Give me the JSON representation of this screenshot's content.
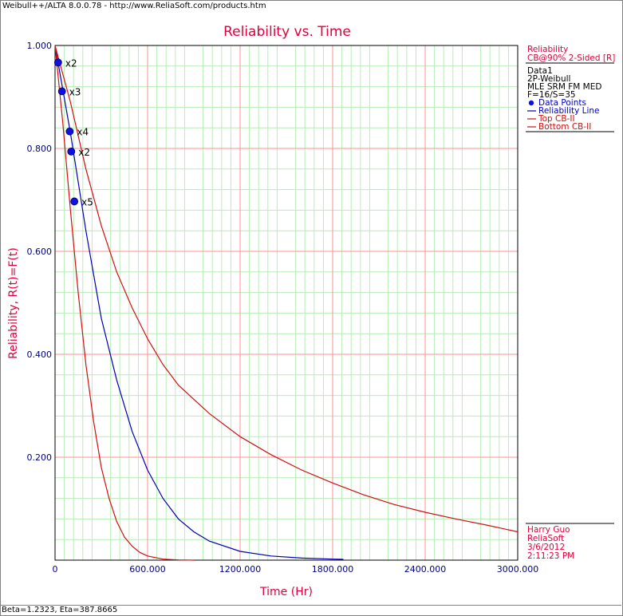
{
  "window": {
    "title": "Weibull++/ALTA 8.0.0.78 - http://www.ReliaSoft.com/products.htm"
  },
  "status_bar": {
    "text": "Beta=1.2323, Eta=387.8665"
  },
  "colors": {
    "title": "#e0003c",
    "axis_text": "#000080",
    "reliability_line": "#0000b0",
    "confidence_bounds": "#d01010",
    "major_grid": "#ff9090",
    "minor_grid": "#b8ecb8"
  },
  "legend": {
    "header": "Reliability",
    "subheader": "CB@90% 2-Sided [R]",
    "dataset": "Data1",
    "model": "2P-Weibull",
    "method": "MLE SRM FM MED",
    "counts": "F=16/S=35",
    "items": [
      {
        "label": "Data Points",
        "icon": "dot-icon"
      },
      {
        "label": "Reliability Line",
        "icon": "line-icon"
      },
      {
        "label": "Top CB-II",
        "icon": "line-icon"
      },
      {
        "label": "Bottom CB-II",
        "icon": "line-icon"
      }
    ]
  },
  "footer_info": {
    "user": "Harry Guo",
    "company": "ReliaSoft",
    "date": "3/6/2012",
    "time": "2:11:23 PM"
  },
  "chart_data": {
    "type": "line",
    "title": "Reliability vs. Time",
    "xlabel": "Time (Hr)",
    "ylabel": "Reliability, R(t)=F(t)",
    "xlim": [
      0,
      3000
    ],
    "ylim": [
      0,
      1
    ],
    "x_ticks": [
      "0",
      "600.000",
      "1200.000",
      "1800.000",
      "2400.000",
      "3000.000"
    ],
    "y_ticks": [
      "0.200",
      "0.400",
      "0.600",
      "0.800",
      "1.000"
    ],
    "grid": true,
    "legend_position": "right",
    "weibull": {
      "beta": 1.2323,
      "eta": 387.8665
    },
    "data_points": [
      {
        "x": 20,
        "y": 0.967,
        "label": "x2"
      },
      {
        "x": 45,
        "y": 0.911,
        "label": "x3"
      },
      {
        "x": 95,
        "y": 0.833,
        "label": "x4"
      },
      {
        "x": 105,
        "y": 0.794,
        "label": "x2"
      },
      {
        "x": 125,
        "y": 0.697,
        "label": "x5"
      }
    ],
    "series": [
      {
        "name": "Reliability Line",
        "x": [
          0,
          100,
          200,
          300,
          400,
          500,
          600,
          700,
          800,
          900,
          1000,
          1200,
          1400,
          1600,
          1800,
          1870
        ],
        "y": [
          1.0,
          0.83,
          0.64,
          0.47,
          0.35,
          0.25,
          0.175,
          0.12,
          0.08,
          0.055,
          0.037,
          0.017,
          0.008,
          0.004,
          0.002,
          0.0015
        ]
      },
      {
        "name": "Top CB-II",
        "x": [
          0,
          100,
          200,
          300,
          400,
          500,
          600,
          700,
          800,
          1000,
          1200,
          1400,
          1600,
          1800,
          2000,
          2200,
          2400,
          2600,
          2800,
          3000
        ],
        "y": [
          1.0,
          0.89,
          0.76,
          0.65,
          0.56,
          0.49,
          0.43,
          0.38,
          0.34,
          0.285,
          0.24,
          0.205,
          0.175,
          0.15,
          0.127,
          0.108,
          0.093,
          0.08,
          0.068,
          0.055
        ]
      },
      {
        "name": "Bottom CB-II",
        "x": [
          0,
          50,
          100,
          150,
          200,
          250,
          300,
          350,
          400,
          450,
          500,
          550,
          600,
          700,
          800,
          900
        ],
        "y": [
          1.0,
          0.85,
          0.68,
          0.52,
          0.38,
          0.27,
          0.18,
          0.12,
          0.075,
          0.045,
          0.027,
          0.015,
          0.008,
          0.002,
          0.0005,
          0.0
        ]
      }
    ]
  }
}
